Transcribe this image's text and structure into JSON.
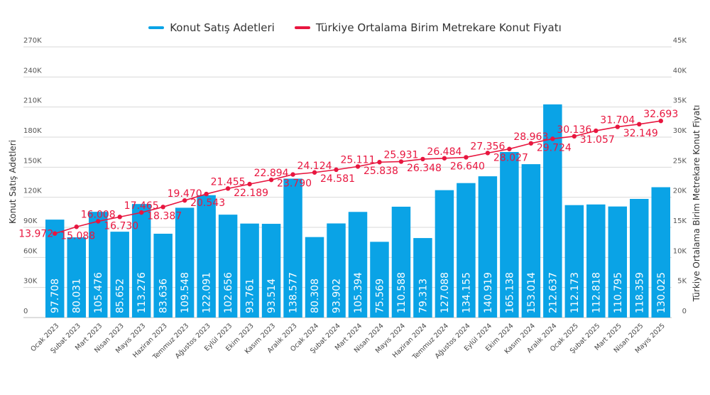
{
  "chart_data": {
    "type": "bar+line",
    "title": "",
    "legend": {
      "placement": "top-center",
      "entries": [
        {
          "name": "Konut Satış Adetleri",
          "color": "#0aa3e6"
        },
        {
          "name": "Türkiye Ortalama Birim Metrekare Konut Fiyatı",
          "color": "#e8163f"
        }
      ]
    },
    "categories": [
      "Ocak 2023",
      "Şubat 2023",
      "Mart 2023",
      "Nisan 2023",
      "Mayıs 2023",
      "Haziran 2023",
      "Temmuz 2023",
      "Ağustos 2023",
      "Eylül 2023",
      "Ekim 2023",
      "Kasım 2023",
      "Aralık 2023",
      "Ocak 2024",
      "Şubat 2024",
      "Mart 2024",
      "Nisan 2024",
      "Mayıs 2024",
      "Haziran 2024",
      "Temmuz 2024",
      "Ağustos 2024",
      "Eylül 2024",
      "Ekim 2024",
      "Kasım 2024",
      "Aralık 2024",
      "Ocak 2025",
      "Şubat 2025",
      "Mart 2025",
      "Nisan 2025",
      "Mayıs 2025"
    ],
    "series": [
      {
        "name": "Konut Satış Adetleri",
        "type": "bar",
        "axis": "left",
        "color": "#0aa3e6",
        "values": [
          97708,
          80031,
          105476,
          85652,
          113276,
          83636,
          109548,
          122091,
          102656,
          93761,
          93514,
          138577,
          80308,
          93902,
          105394,
          75569,
          110588,
          79313,
          127088,
          134155,
          140919,
          165138,
          153014,
          212637,
          112173,
          112818,
          110795,
          118359,
          130025
        ],
        "labels": [
          "97.708",
          "80.031",
          "105.476",
          "85.652",
          "113.276",
          "83.636",
          "109.548",
          "122.091",
          "102.656",
          "93.761",
          "93.514",
          "138.577",
          "80.308",
          "93.902",
          "105.394",
          "75.569",
          "110.588",
          "79.313",
          "127.088",
          "134.155",
          "140.919",
          "165.138",
          "153.014",
          "212.637",
          "112.173",
          "112.818",
          "110.795",
          "118.359",
          "130.025"
        ]
      },
      {
        "name": "Türkiye Ortalama Birim Metrekare Konut Fiyatı",
        "type": "line",
        "axis": "right",
        "color": "#e8163f",
        "values": [
          13972,
          15088,
          16008,
          16730,
          17465,
          18387,
          19470,
          20543,
          21455,
          22189,
          22894,
          23790,
          24124,
          24581,
          25111,
          25838,
          25931,
          26348,
          26484,
          26640,
          27356,
          28027,
          28963,
          29724,
          30136,
          31057,
          31704,
          32149,
          32693
        ],
        "labels": [
          "13.972",
          "15.088",
          "16.008",
          "16.730",
          "17.465",
          "18.387",
          "19.470",
          "20.543",
          "21.455",
          "22.189",
          "22.894",
          "23.790",
          "24.124",
          "24.581",
          "25.111",
          "25.838",
          "25.931",
          "26.348",
          "26.484",
          "26.640",
          "27.356",
          "28.027",
          "28.963",
          "29.724",
          "30.136",
          "31.057",
          "31.704",
          "32.149",
          "32.693"
        ]
      }
    ],
    "left_axis": {
      "label": "Konut Satış Adetleri",
      "ylim": [
        0,
        270000
      ],
      "ticks": [
        0,
        30000,
        60000,
        90000,
        120000,
        150000,
        180000,
        210000,
        240000,
        270000
      ],
      "tick_labels": [
        "0",
        "30K",
        "60K",
        "90K",
        "120K",
        "150K",
        "180K",
        "210K",
        "240K",
        "270K"
      ]
    },
    "right_axis": {
      "label": "Türkiye Ortalama Birim Metrekare Konut Fiyatı",
      "ylim": [
        0,
        45000
      ],
      "ticks": [
        0,
        5000,
        10000,
        15000,
        20000,
        25000,
        30000,
        35000,
        40000,
        45000
      ],
      "tick_labels": [
        "0",
        "5K",
        "10K",
        "15K",
        "20K",
        "25K",
        "30K",
        "35K",
        "40K",
        "45K"
      ]
    },
    "xlabel": "",
    "grid": true
  }
}
